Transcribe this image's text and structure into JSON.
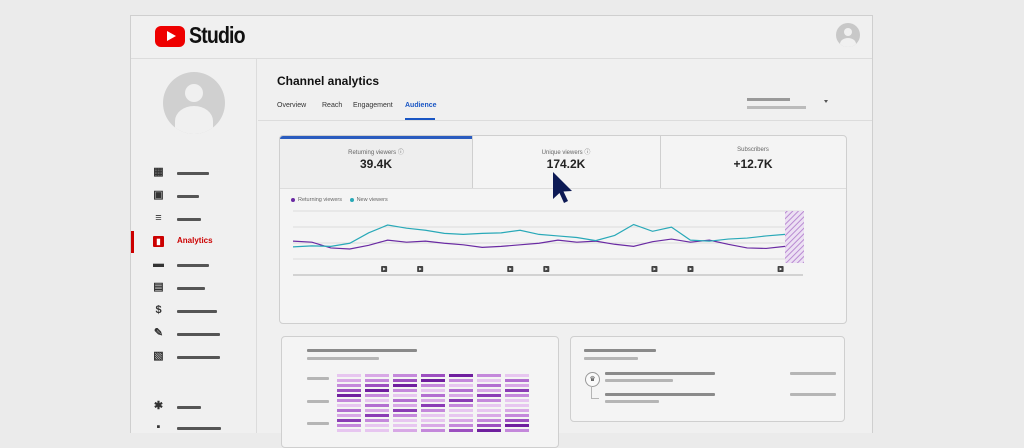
{
  "app": {
    "logo_text": "Studio",
    "brand_color": "#ff0000",
    "accent_color": "#1a56c4"
  },
  "sidebar": {
    "items": [
      {
        "icon": "dashboard-icon",
        "label": ""
      },
      {
        "icon": "content-icon",
        "label": ""
      },
      {
        "icon": "playlists-icon",
        "label": ""
      },
      {
        "icon": "analytics-icon",
        "label": "Analytics",
        "active": true
      },
      {
        "icon": "comments-icon",
        "label": ""
      },
      {
        "icon": "subtitles-icon",
        "label": ""
      },
      {
        "icon": "earn-icon",
        "label": ""
      },
      {
        "icon": "customization-icon",
        "label": ""
      },
      {
        "icon": "audio-library-icon",
        "label": ""
      },
      {
        "icon": "settings-icon",
        "label": ""
      },
      {
        "icon": "feedback-icon",
        "label": ""
      }
    ]
  },
  "main": {
    "title": "Channel analytics",
    "tabs": [
      {
        "label": "Overview"
      },
      {
        "label": "Reach"
      },
      {
        "label": "Engagement"
      },
      {
        "label": "Audience",
        "active": true
      }
    ],
    "metrics": [
      {
        "label": "Returning viewers ⓘ",
        "value": "39.4K"
      },
      {
        "label": "Unique viewers ⓘ",
        "value": "174.2K"
      },
      {
        "label": "Subscribers",
        "value": "+12.7K"
      }
    ],
    "legend": [
      {
        "name": "Returning viewers",
        "color": "#6a2aa3"
      },
      {
        "name": "New viewers",
        "color": "#29a9b8"
      }
    ]
  },
  "chart_data": {
    "type": "line",
    "series": [
      {
        "name": "Returning viewers",
        "color": "#6a2aa3",
        "values": [
          42,
          40,
          29,
          27,
          34,
          44,
          40,
          42,
          38,
          35,
          30,
          32,
          35,
          38,
          44,
          40,
          42,
          36,
          32,
          41,
          46,
          40,
          44,
          36,
          29,
          28,
          32
        ]
      },
      {
        "name": "New viewers",
        "color": "#29a9b8",
        "values": [
          31,
          33,
          32,
          38,
          58,
          73,
          67,
          63,
          57,
          55,
          57,
          58,
          63,
          55,
          52,
          49,
          43,
          53,
          74,
          61,
          69,
          44,
          42,
          46,
          48,
          52,
          55
        ]
      }
    ],
    "ylim": [
      0,
      100
    ],
    "grid": true,
    "markers_at": [
      5,
      7,
      12,
      14,
      20,
      22,
      27
    ]
  }
}
